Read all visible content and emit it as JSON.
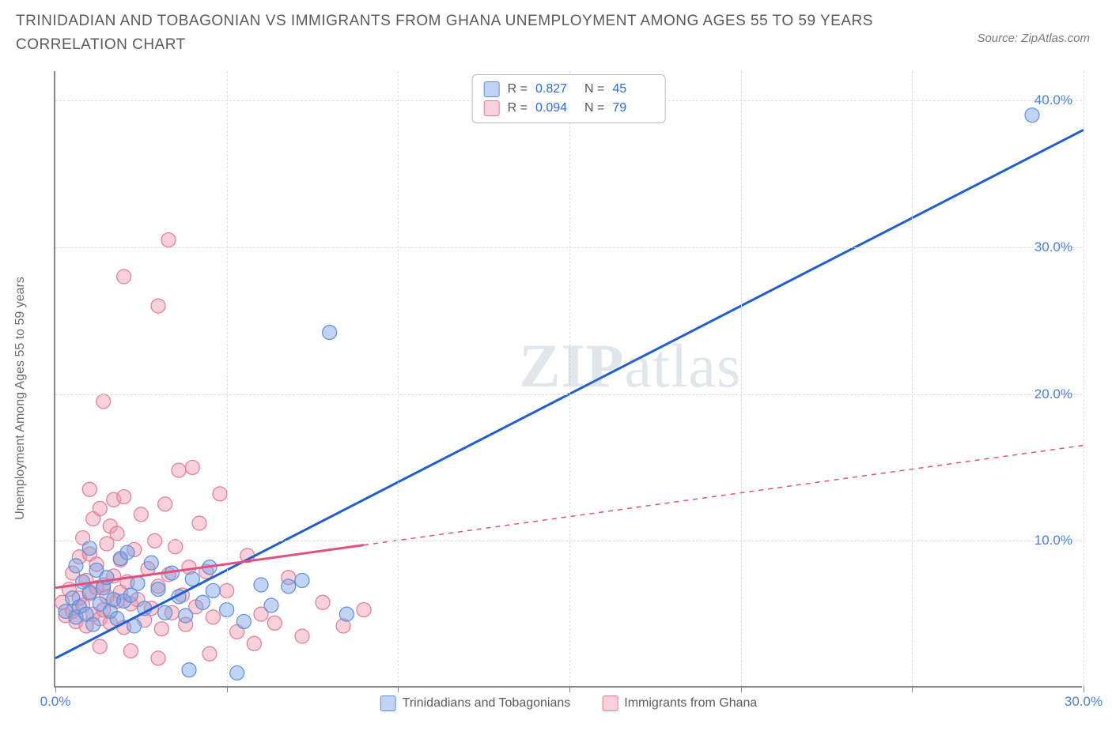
{
  "title": "TRINIDADIAN AND TOBAGONIAN VS IMMIGRANTS FROM GHANA UNEMPLOYMENT AMONG AGES 55 TO 59 YEARS CORRELATION CHART",
  "source": "Source: ZipAtlas.com",
  "y_axis_label": "Unemployment Among Ages 55 to 59 years",
  "watermark_a": "ZIP",
  "watermark_b": "atlas",
  "chart": {
    "type": "scatter",
    "xlim": [
      0,
      30
    ],
    "ylim": [
      0,
      42
    ],
    "x_ticks": [
      0,
      5,
      10,
      15,
      20,
      25,
      30
    ],
    "x_tick_labels": [
      "0.0%",
      "",
      "",
      "",
      "",
      "",
      "30.0%"
    ],
    "y_ticks": [
      10,
      20,
      30,
      40
    ],
    "y_tick_labels": [
      "10.0%",
      "20.0%",
      "30.0%",
      "40.0%"
    ],
    "grid_color": "#dddddd",
    "background_color": "#ffffff",
    "marker_radius": 9,
    "marker_stroke_width": 1.2,
    "line_width_solid": 3,
    "line_width_dash": 1.5,
    "series": [
      {
        "name": "Trinidadians and Tobagonians",
        "color_fill": "rgba(120,160,230,0.45)",
        "color_stroke": "#5a8fd8",
        "line_color": "#1f5fd0",
        "R": "0.827",
        "N": "45",
        "regression": {
          "x1": 0,
          "y1": 2.0,
          "x2": 30,
          "y2": 38.0,
          "solid_until_x": 30
        },
        "points": [
          [
            0.3,
            5.2
          ],
          [
            0.5,
            6.1
          ],
          [
            0.6,
            4.8
          ],
          [
            0.7,
            5.5
          ],
          [
            0.8,
            7.2
          ],
          [
            0.9,
            5.0
          ],
          [
            1.0,
            6.5
          ],
          [
            1.1,
            4.3
          ],
          [
            1.2,
            8.0
          ],
          [
            1.3,
            5.7
          ],
          [
            1.4,
            6.8
          ],
          [
            1.5,
            7.5
          ],
          [
            1.6,
            5.2
          ],
          [
            1.7,
            6.0
          ],
          [
            1.8,
            4.7
          ],
          [
            1.9,
            8.8
          ],
          [
            2.0,
            5.9
          ],
          [
            2.2,
            6.3
          ],
          [
            2.4,
            7.1
          ],
          [
            2.6,
            5.4
          ],
          [
            2.8,
            8.5
          ],
          [
            3.0,
            6.7
          ],
          [
            3.2,
            5.1
          ],
          [
            3.4,
            7.8
          ],
          [
            3.6,
            6.2
          ],
          [
            3.8,
            4.9
          ],
          [
            4.0,
            7.4
          ],
          [
            4.3,
            5.8
          ],
          [
            4.6,
            6.6
          ],
          [
            5.0,
            5.3
          ],
          [
            5.3,
            1.0
          ],
          [
            5.5,
            4.5
          ],
          [
            6.0,
            7.0
          ],
          [
            6.3,
            5.6
          ],
          [
            6.8,
            6.9
          ],
          [
            7.2,
            7.3
          ],
          [
            8.5,
            5.0
          ],
          [
            3.9,
            1.2
          ],
          [
            8.0,
            24.2
          ],
          [
            28.5,
            39.0
          ],
          [
            2.1,
            9.2
          ],
          [
            1.0,
            9.5
          ],
          [
            0.6,
            8.3
          ],
          [
            2.3,
            4.2
          ],
          [
            4.5,
            8.2
          ]
        ]
      },
      {
        "name": "Immigrants from Ghana",
        "color_fill": "rgba(240,150,170,0.45)",
        "color_stroke": "#e27a95",
        "line_color": "#e05080",
        "R": "0.094",
        "N": "79",
        "regression": {
          "x1": 0,
          "y1": 6.8,
          "x2": 30,
          "y2": 16.5,
          "solid_until_x": 9
        },
        "points": [
          [
            0.2,
            5.8
          ],
          [
            0.3,
            4.9
          ],
          [
            0.4,
            6.7
          ],
          [
            0.5,
            5.2
          ],
          [
            0.5,
            7.8
          ],
          [
            0.6,
            4.5
          ],
          [
            0.7,
            6.1
          ],
          [
            0.7,
            8.9
          ],
          [
            0.8,
            5.6
          ],
          [
            0.8,
            10.2
          ],
          [
            0.9,
            4.2
          ],
          [
            0.9,
            7.3
          ],
          [
            1.0,
            6.4
          ],
          [
            1.0,
            9.1
          ],
          [
            1.1,
            5.0
          ],
          [
            1.1,
            11.5
          ],
          [
            1.2,
            6.8
          ],
          [
            1.2,
            8.4
          ],
          [
            1.3,
            4.7
          ],
          [
            1.3,
            12.2
          ],
          [
            1.4,
            7.0
          ],
          [
            1.4,
            5.3
          ],
          [
            1.5,
            9.8
          ],
          [
            1.5,
            6.2
          ],
          [
            1.6,
            11.0
          ],
          [
            1.6,
            4.4
          ],
          [
            1.7,
            7.6
          ],
          [
            1.7,
            12.8
          ],
          [
            1.8,
            5.9
          ],
          [
            1.8,
            10.5
          ],
          [
            1.9,
            6.5
          ],
          [
            1.9,
            8.7
          ],
          [
            2.0,
            4.1
          ],
          [
            2.0,
            13.0
          ],
          [
            2.1,
            7.2
          ],
          [
            2.2,
            5.7
          ],
          [
            2.3,
            9.4
          ],
          [
            2.4,
            6.0
          ],
          [
            2.5,
            11.8
          ],
          [
            2.6,
            4.6
          ],
          [
            2.7,
            8.1
          ],
          [
            2.8,
            5.4
          ],
          [
            2.9,
            10.0
          ],
          [
            3.0,
            6.9
          ],
          [
            3.1,
            4.0
          ],
          [
            3.2,
            12.5
          ],
          [
            3.3,
            7.7
          ],
          [
            3.4,
            5.1
          ],
          [
            3.5,
            9.6
          ],
          [
            3.6,
            14.8
          ],
          [
            3.7,
            6.3
          ],
          [
            3.8,
            4.3
          ],
          [
            3.9,
            8.2
          ],
          [
            4.0,
            15.0
          ],
          [
            4.1,
            5.5
          ],
          [
            4.2,
            11.2
          ],
          [
            4.4,
            7.9
          ],
          [
            4.6,
            4.8
          ],
          [
            4.8,
            13.2
          ],
          [
            5.0,
            6.6
          ],
          [
            5.3,
            3.8
          ],
          [
            5.6,
            9.0
          ],
          [
            6.0,
            5.0
          ],
          [
            6.4,
            4.4
          ],
          [
            6.8,
            7.5
          ],
          [
            7.2,
            3.5
          ],
          [
            7.8,
            5.8
          ],
          [
            8.4,
            4.2
          ],
          [
            9.0,
            5.3
          ],
          [
            1.4,
            19.5
          ],
          [
            2.0,
            28.0
          ],
          [
            3.0,
            26.0
          ],
          [
            3.3,
            30.5
          ],
          [
            1.0,
            13.5
          ],
          [
            1.3,
            2.8
          ],
          [
            2.2,
            2.5
          ],
          [
            3.0,
            2.0
          ],
          [
            4.5,
            2.3
          ],
          [
            5.8,
            3.0
          ]
        ]
      }
    ]
  },
  "legend_stats": {
    "r_label": "R =",
    "n_label": "N ="
  },
  "bottom_legend": [
    "Trinidadians and Tobagonians",
    "Immigrants from Ghana"
  ]
}
